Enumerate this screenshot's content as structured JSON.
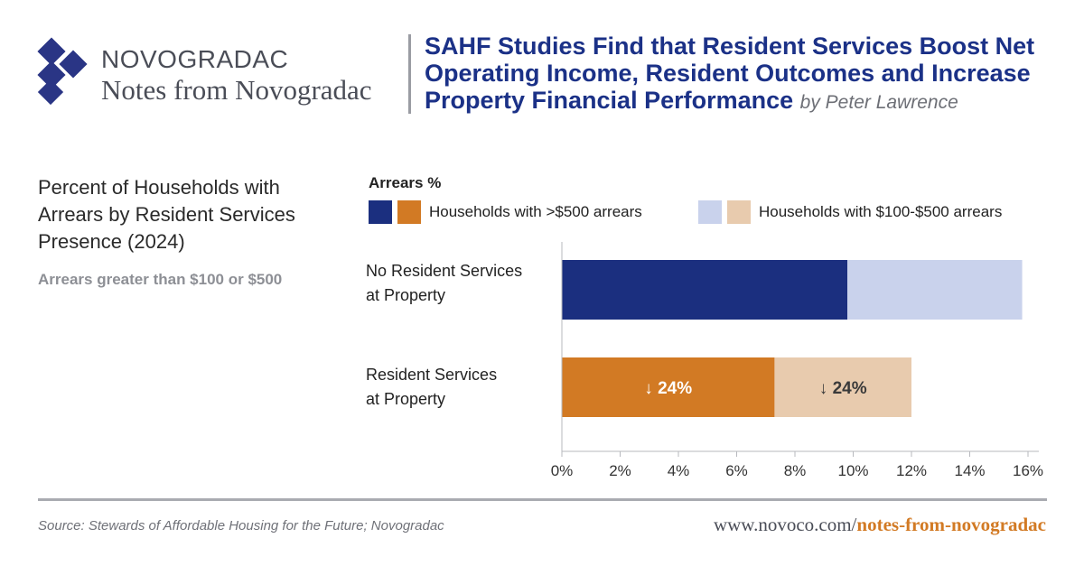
{
  "header": {
    "brand_name": "NOVOGRADAC",
    "brand_sub": "Notes from Novogradac",
    "headline": "SAHF Studies Find that Resident Services Boost Net Operating Income, Resident Outcomes and Increase Property Financial Performance",
    "byline": "by Peter Lawrence"
  },
  "colors": {
    "brand_blue": "#1b3187",
    "dark_blue": "#1b2f7f",
    "light_blue": "#c9d2ec",
    "orange": "#d27a24",
    "light_orange": "#e8cbae"
  },
  "chart_data": {
    "type": "bar",
    "orientation": "horizontal",
    "stacked": true,
    "title": "Percent of Households with Arrears by Resident Services Presence (2024)",
    "subtitle": "Arrears greater than $100 or $500",
    "legend_title": "Arrears %",
    "categories": [
      "No Resident Services at Property",
      "Resident Services at Property"
    ],
    "category_lines": [
      [
        "No Resident Services",
        "at Property"
      ],
      [
        "Resident Services",
        "at Property"
      ]
    ],
    "series": [
      {
        "name": "Households with >$500 arrears",
        "values": [
          9.8,
          7.3
        ],
        "colors": [
          "#1b2f7f",
          "#d27a24"
        ]
      },
      {
        "name": "Households with $100-$500 arrears",
        "values": [
          6.0,
          4.7
        ],
        "colors": [
          "#c9d2ec",
          "#e8cbae"
        ]
      }
    ],
    "annotations": [
      {
        "category": 1,
        "series": 0,
        "text": "↓ 24%"
      },
      {
        "category": 1,
        "series": 1,
        "text": "↓ 24%"
      }
    ],
    "xlim": [
      0,
      16
    ],
    "xticks": [
      "0%",
      "2%",
      "4%",
      "6%",
      "8%",
      "10%",
      "12%",
      "14%",
      "16%"
    ],
    "grid": false,
    "legend_placement": "top"
  },
  "footer": {
    "source": "Source: Stewards of Affordable Housing for the Future; Novogradac",
    "url_prefix": "www.novoco.com/",
    "url_suffix": "notes-from-novogradac"
  }
}
